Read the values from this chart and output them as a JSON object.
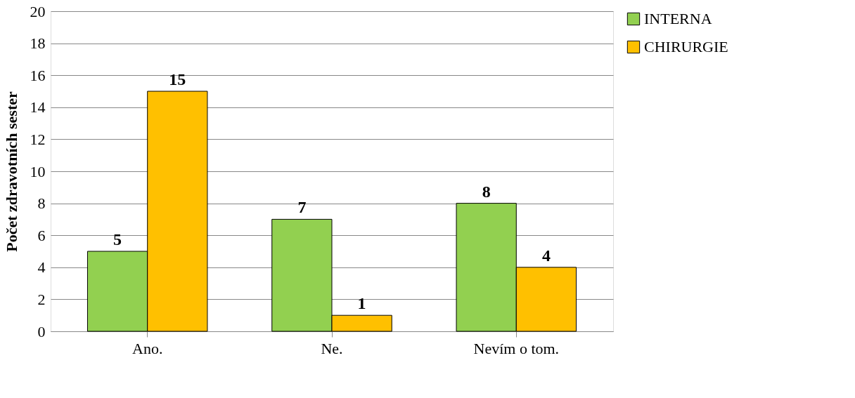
{
  "chart_data": {
    "type": "bar",
    "ylabel": "Počet zdravotních sester",
    "categories": [
      "Ano.",
      "Ne.",
      "Nevím o tom."
    ],
    "series": [
      {
        "name": "INTERNA",
        "color": "#92d050",
        "values": [
          5,
          7,
          8
        ]
      },
      {
        "name": "CHIRURGIE",
        "color": "#ffc000",
        "values": [
          15,
          1,
          4
        ]
      }
    ],
    "ylim": [
      0,
      20
    ],
    "yticks": [
      0,
      2,
      4,
      6,
      8,
      10,
      12,
      14,
      16,
      18,
      20
    ],
    "grid": "y",
    "legend": "right",
    "data_labels": true
  }
}
